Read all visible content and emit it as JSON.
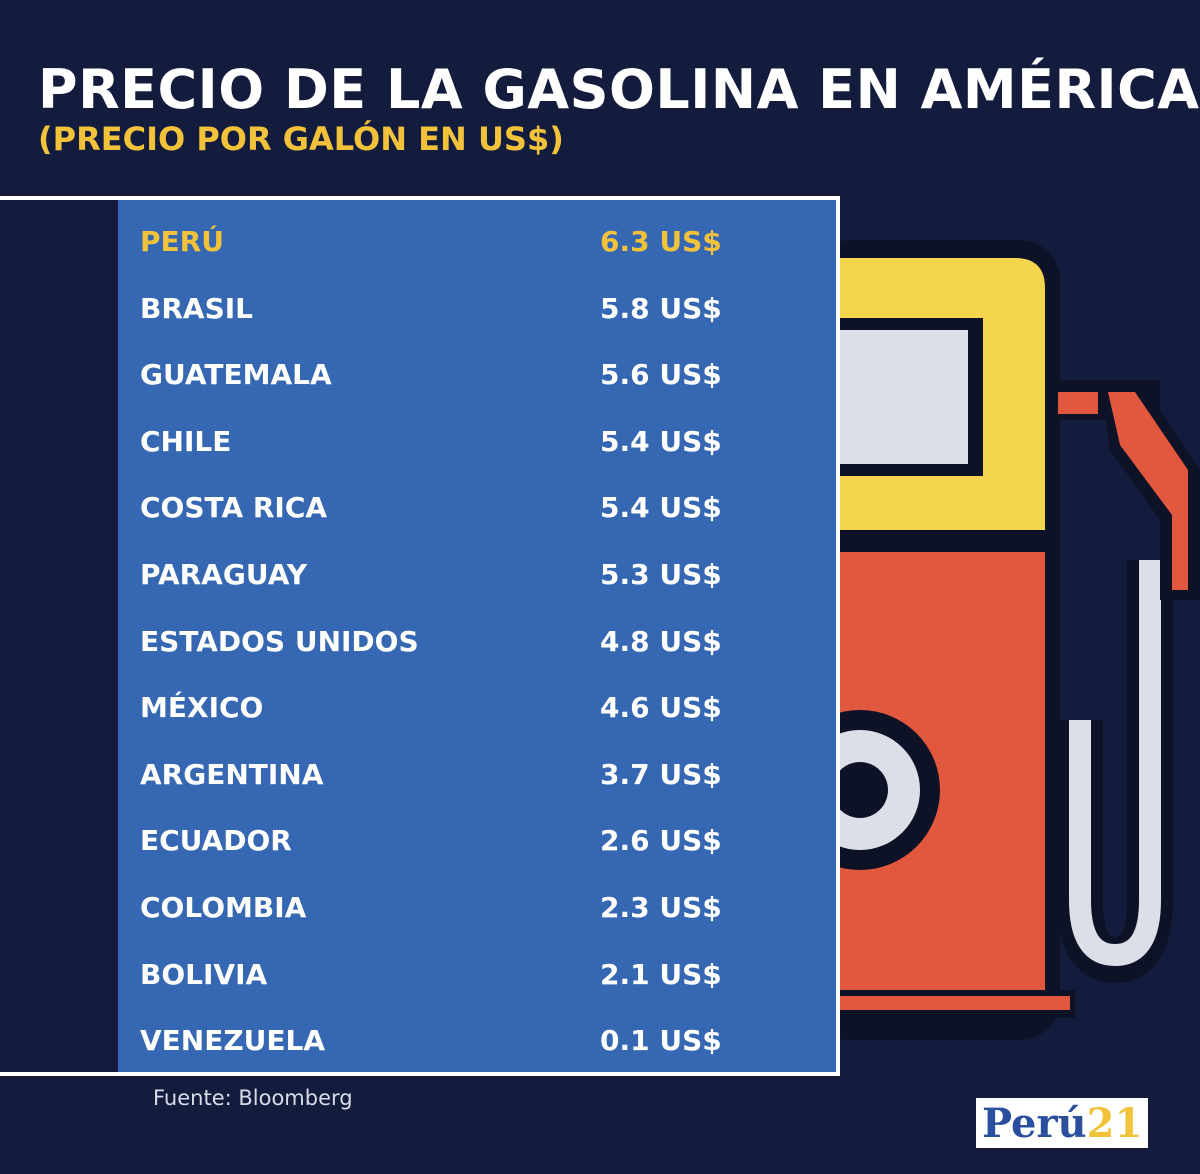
{
  "header": {
    "title": "PRECIO DE LA GASOLINA EN AMÉRICA",
    "subtitle": "(PRECIO POR GALÓN EN US$)"
  },
  "chart_data": {
    "type": "table",
    "title": "PRECIO DE LA GASOLINA EN AMÉRICA",
    "subtitle": "(PRECIO POR GALÓN EN US$)",
    "unit": "US$",
    "rows": [
      {
        "country": "PERÚ",
        "value": 6.3,
        "price_label": "6.3 US$",
        "highlight": true
      },
      {
        "country": "BRASIL",
        "value": 5.8,
        "price_label": "5.8 US$"
      },
      {
        "country": "GUATEMALA",
        "value": 5.6,
        "price_label": "5.6 US$"
      },
      {
        "country": "CHILE",
        "value": 5.4,
        "price_label": "5.4 US$"
      },
      {
        "country": "COSTA RICA",
        "value": 5.4,
        "price_label": "5.4 US$"
      },
      {
        "country": "PARAGUAY",
        "value": 5.3,
        "price_label": "5.3 US$"
      },
      {
        "country": "ESTADOS UNIDOS",
        "value": 4.8,
        "price_label": "4.8 US$"
      },
      {
        "country": "MÉXICO",
        "value": 4.6,
        "price_label": "4.6 US$"
      },
      {
        "country": "ARGENTINA",
        "value": 3.7,
        "price_label": "3.7 US$"
      },
      {
        "country": "ECUADOR",
        "value": 2.6,
        "price_label": "2.6 US$"
      },
      {
        "country": "COLOMBIA",
        "value": 2.3,
        "price_label": "2.3 US$"
      },
      {
        "country": "BOLIVIA",
        "value": 2.1,
        "price_label": "2.1 US$"
      },
      {
        "country": "VENEZUELA",
        "value": 0.1,
        "price_label": "0.1 US$"
      }
    ]
  },
  "footer": {
    "source": "Fuente: Bloomberg",
    "logo_main": "Perú",
    "logo_num": "21"
  },
  "colors": {
    "background": "#141c3e",
    "table": "#3667b2",
    "highlight": "#f2c23a",
    "pump_body": "#e2583e",
    "pump_top": "#f5d44e"
  },
  "icons": [
    "gas-pump-icon"
  ]
}
